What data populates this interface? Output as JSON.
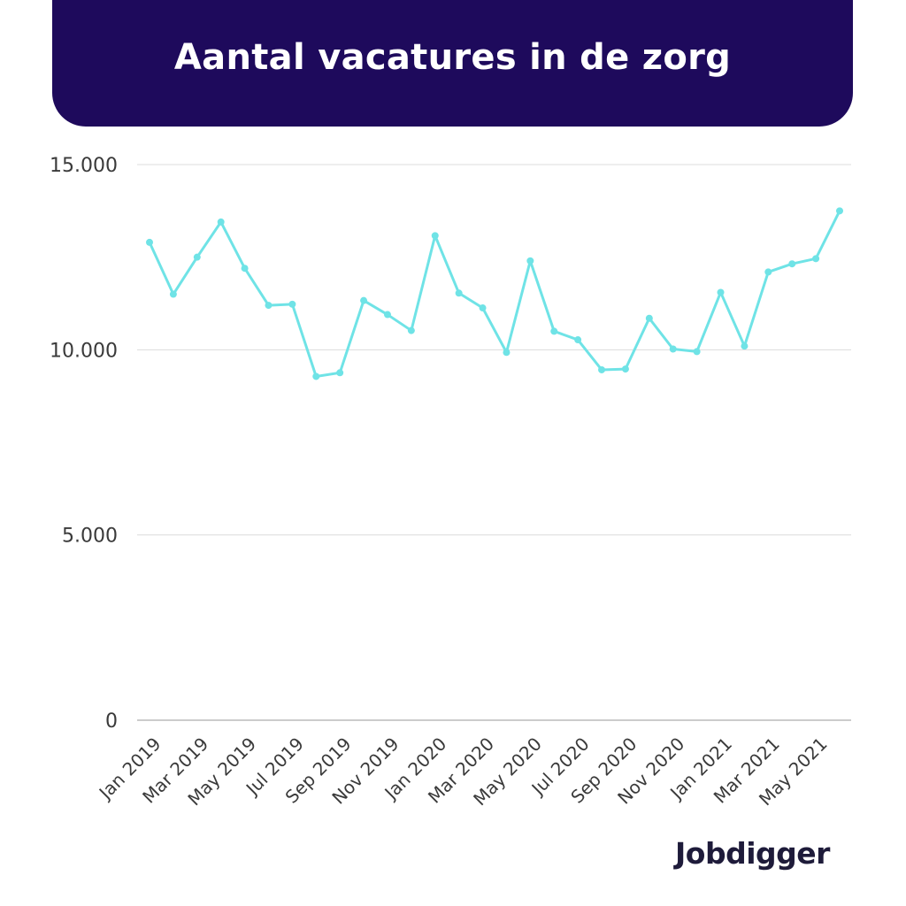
{
  "header": {
    "title": "Aantal vacatures in de zorg"
  },
  "brand": {
    "logo": "Jobdigger"
  },
  "colors": {
    "header_bg": "#1e0a5c",
    "line": "#6fe3e6",
    "grid": "#dcdcdc",
    "axis_text": "#3a3a3a"
  },
  "chart_data": {
    "type": "line",
    "title": "Aantal vacatures in de zorg",
    "xlabel": "",
    "ylabel": "",
    "ylim": [
      0,
      15000
    ],
    "yticks": [
      0,
      5000,
      10000,
      15000
    ],
    "ytick_labels": [
      "0",
      "5.000",
      "10.000",
      "15.000"
    ],
    "grid": true,
    "x": [
      "Jan 2019",
      "Feb 2019",
      "Mar 2019",
      "Apr 2019",
      "May 2019",
      "Jun 2019",
      "Jul 2019",
      "Aug 2019",
      "Sep 2019",
      "Oct 2019",
      "Nov 2019",
      "Dec 2019",
      "Jan 2020",
      "Feb 2020",
      "Mar 2020",
      "Apr 2020",
      "May 2020",
      "Jun 2020",
      "Jul 2020",
      "Aug 2020",
      "Sep 2020",
      "Oct 2020",
      "Nov 2020",
      "Dec 2020",
      "Jan 2021",
      "Feb 2021",
      "Mar 2021",
      "Apr 2021",
      "May 2021",
      "Jun 2021"
    ],
    "xtick_labels": [
      "Jan 2019",
      "Mar 2019",
      "May 2019",
      "Jul 2019",
      "Sep 2019",
      "Nov 2019",
      "Jan 2020",
      "Mar 2020",
      "May 2020",
      "Jul 2020",
      "Sep 2020",
      "Nov 2020",
      "Jan 2021",
      "Mar 2021",
      "May 2021"
    ],
    "series": [
      {
        "values": [
          12900,
          11500,
          12500,
          13450,
          12200,
          11200,
          11230,
          9280,
          9380,
          11330,
          10950,
          10520,
          13080,
          11530,
          11130,
          9930,
          12400,
          10500,
          10270,
          9460,
          9480,
          10850,
          10020,
          9950,
          11550,
          10100,
          12100,
          12320,
          12460,
          13750
        ]
      }
    ]
  }
}
